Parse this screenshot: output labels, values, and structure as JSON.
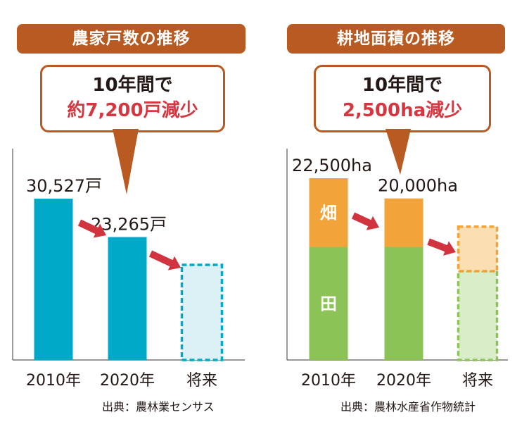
{
  "colors": {
    "banner": "#b85a21",
    "callout_border": "#b85a21",
    "highlight_red": "#d6363f",
    "arrow_red": "#d2343f",
    "teal": "#00a9c7",
    "teal_light": "#dcf1f6",
    "green": "#8cc357",
    "green_light": "#d9eec8",
    "orange": "#f2a33a",
    "orange_light": "#fbdfb2",
    "axis": "#5a5a5a"
  },
  "chart_data": [
    {
      "type": "bar",
      "title": "農家戸数の推移",
      "callout": {
        "line1": "10年間で",
        "line2": "約7,200戸減少"
      },
      "categories": [
        "2010年",
        "2020年",
        "将来"
      ],
      "series": [
        {
          "values": [
            30527,
            23265,
            18000
          ],
          "value_labels": [
            "30,527戸",
            "23,265戸",
            ""
          ],
          "projected": [
            false,
            false,
            true
          ]
        }
      ],
      "ylim": [
        0,
        40000
      ],
      "source": "出典：農林業センサス"
    },
    {
      "type": "bar",
      "stacked": true,
      "title": "耕地面積の推移",
      "callout": {
        "line1": "10年間で",
        "line2": "2,500ha減少"
      },
      "categories": [
        "2010年",
        "2020年",
        "将来"
      ],
      "series": [
        {
          "name": "田",
          "values": [
            14000,
            14000,
            11000
          ],
          "projected": [
            false,
            false,
            true
          ]
        },
        {
          "name": "畑",
          "values": [
            8500,
            6000,
            5500
          ],
          "projected": [
            false,
            false,
            true
          ]
        }
      ],
      "totals": [
        "22,500ha",
        "20,000ha",
        ""
      ],
      "ylim": [
        0,
        30000
      ],
      "source": "出典：農林水産省作物統計"
    }
  ]
}
